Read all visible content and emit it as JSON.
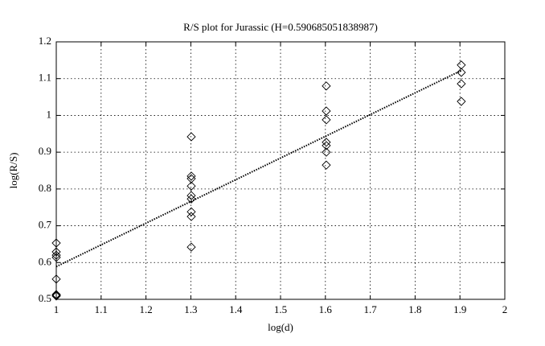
{
  "chart_data": {
    "type": "scatter",
    "title": "R/S plot for Jurassic (H=0.590685051838987)",
    "xlabel": "log(d)",
    "ylabel": "log(R/S)",
    "x": [
      1,
      1,
      1,
      1,
      1,
      1,
      1,
      1,
      1.301,
      1.301,
      1.301,
      1.301,
      1.301,
      1.301,
      1.301,
      1.301,
      1.301,
      1.602,
      1.602,
      1.602,
      1.602,
      1.602,
      1.602,
      1.602,
      1.903,
      1.903,
      1.903,
      1.903
    ],
    "y": [
      0.653,
      0.629,
      0.62,
      0.614,
      0.555,
      0.513,
      0.511,
      0.509,
      0.942,
      0.835,
      0.828,
      0.808,
      0.782,
      0.773,
      0.738,
      0.725,
      0.642,
      1.08,
      1.012,
      0.988,
      0.927,
      0.918,
      0.9,
      0.865,
      1.137,
      1.117,
      1.086,
      1.038
    ],
    "color": "#000000",
    "fit": {
      "x": [
        1,
        1.903
      ],
      "y": [
        0.589,
        1.122
      ]
    },
    "xlim": [
      1,
      2
    ],
    "ylim": [
      0.5,
      1.2
    ],
    "xticks": [
      1,
      1.1,
      1.2,
      1.3,
      1.4,
      1.5,
      1.6,
      1.7,
      1.8,
      1.9,
      2
    ],
    "yticks": [
      0.5,
      0.6,
      0.7,
      0.8,
      0.9,
      1,
      1.1,
      1.2
    ],
    "grid": true
  }
}
